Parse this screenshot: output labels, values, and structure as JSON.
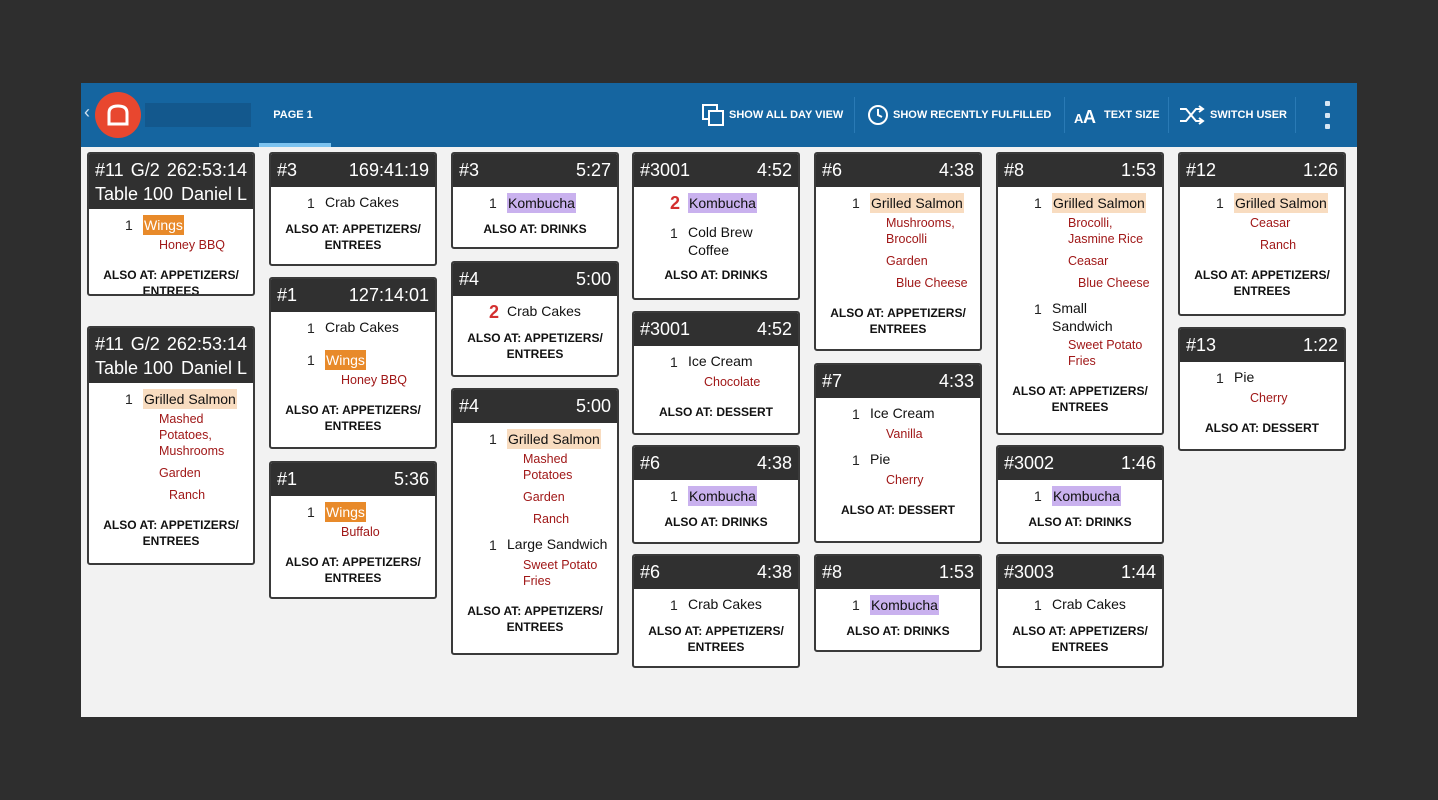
{
  "topbar": {
    "tab": "PAGE 1",
    "show_all_day": "SHOW ALL DAY VIEW",
    "recent": "SHOW RECENTLY FULFILLED",
    "text_size": "TEXT SIZE",
    "switch_user": "SWITCH USER"
  },
  "colors": {
    "topbar": "#1565a0",
    "ticket_header": "#303030",
    "modifier": "#a01818",
    "logo": "#e8472f"
  },
  "tickets": [
    {
      "h1": "#11",
      "h2": "G/2",
      "h3": "262:53:14",
      "h4": "Table 100",
      "h5": "Daniel L",
      "i1q": "1",
      "i1n": "Wings",
      "m1": "Honey BBQ",
      "also": "ALSO AT: APPETIZERS/ ENTREES"
    },
    {
      "h1": "#11",
      "h2": "G/2",
      "h3": "262:53:14",
      "h4": "Table 100",
      "h5": "Daniel L",
      "i1q": "1",
      "i1n": "Grilled Salmon",
      "m1": "Mashed Potatoes, Mushrooms",
      "m2": "Garden",
      "m3": "Ranch",
      "also": "ALSO AT: APPETIZERS/ ENTREES"
    },
    {
      "num": "#3",
      "time": "169:41:19",
      "i1q": "1",
      "i1n": "Crab Cakes",
      "also": "ALSO AT: APPETIZERS/ ENTREES"
    },
    {
      "num": "#1",
      "time": "127:14:01",
      "i1q": "1",
      "i1n": "Crab Cakes",
      "i2q": "1",
      "i2n": "Wings",
      "m1": "Honey BBQ",
      "also": "ALSO AT: APPETIZERS/ ENTREES"
    },
    {
      "num": "#1",
      "time": "5:36",
      "i1q": "1",
      "i1n": "Wings",
      "m1": "Buffalo",
      "also": "ALSO AT: APPETIZERS/ ENTREES"
    },
    {
      "num": "#3",
      "time": "5:27",
      "i1q": "1",
      "i1n": "Kombucha",
      "also": "ALSO AT: DRINKS"
    },
    {
      "num": "#4",
      "time": "5:00",
      "i1q": "2",
      "i1n": "Crab Cakes",
      "also": "ALSO AT: APPETIZERS/ ENTREES"
    },
    {
      "num": "#4",
      "time": "5:00",
      "i1q": "1",
      "i1n": "Grilled Salmon",
      "m1": "Mashed Potatoes",
      "m2": "Garden",
      "m3": "Ranch",
      "i2q": "1",
      "i2n": "Large Sandwich",
      "m4": "Sweet Potato Fries",
      "also": "ALSO AT: APPETIZERS/ ENTREES"
    },
    {
      "num": "#3001",
      "time": "4:52",
      "i1q": "2",
      "i1n": "Kombucha",
      "i2q": "1",
      "i2n": "Cold Brew Coffee",
      "also": "ALSO AT: DRINKS"
    },
    {
      "num": "#3001",
      "time": "4:52",
      "i1q": "1",
      "i1n": "Ice Cream",
      "m1": "Chocolate",
      "also": "ALSO AT: DESSERT"
    },
    {
      "num": "#6",
      "time": "4:38",
      "i1q": "1",
      "i1n": "Kombucha",
      "also": "ALSO AT: DRINKS"
    },
    {
      "num": "#6",
      "time": "4:38",
      "i1q": "1",
      "i1n": "Crab Cakes",
      "also": "ALSO AT: APPETIZERS/ ENTREES"
    },
    {
      "num": "#6",
      "time": "4:38",
      "i1q": "1",
      "i1n": "Grilled Salmon",
      "m1": "Mushrooms, Brocolli",
      "m2": "Garden",
      "m3": "Blue Cheese",
      "also": "ALSO AT: APPETIZERS/ ENTREES"
    },
    {
      "num": "#7",
      "time": "4:33",
      "i1q": "1",
      "i1n": "Ice Cream",
      "m1": "Vanilla",
      "i2q": "1",
      "i2n": "Pie",
      "m2": "Cherry",
      "also": "ALSO AT: DESSERT"
    },
    {
      "num": "#8",
      "time": "1:53",
      "i1q": "1",
      "i1n": "Kombucha",
      "also": "ALSO AT: DRINKS"
    },
    {
      "num": "#8",
      "time": "1:53",
      "i1q": "1",
      "i1n": "Grilled Salmon",
      "m1": "Brocolli, Jasmine Rice",
      "m2": "Ceasar",
      "m3": "Blue Cheese",
      "i2q": "1",
      "i2n": "Small Sandwich",
      "m4": "Sweet Potato Fries",
      "also": "ALSO AT: APPETIZERS/ ENTREES"
    },
    {
      "num": "#3002",
      "time": "1:46",
      "i1q": "1",
      "i1n": "Kombucha",
      "also": "ALSO AT: DRINKS"
    },
    {
      "num": "#3003",
      "time": "1:44",
      "i1q": "1",
      "i1n": "Crab Cakes",
      "also": "ALSO AT: APPETIZERS/ ENTREES"
    },
    {
      "num": "#12",
      "time": "1:26",
      "i1q": "1",
      "i1n": "Grilled Salmon",
      "m1": "Ceasar",
      "m2": "Ranch",
      "also": "ALSO AT: APPETIZERS/ ENTREES"
    },
    {
      "num": "#13",
      "time": "1:22",
      "i1q": "1",
      "i1n": "Pie",
      "m1": "Cherry",
      "also": "ALSO AT: DESSERT"
    }
  ]
}
